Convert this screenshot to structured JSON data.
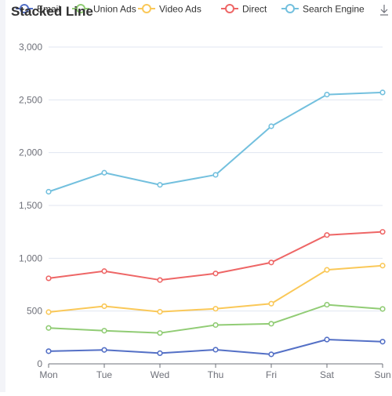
{
  "chart_data": {
    "type": "line",
    "title": "Stacked Line",
    "stacked": true,
    "categories": [
      "Mon",
      "Tue",
      "Wed",
      "Thu",
      "Fri",
      "Sat",
      "Sun"
    ],
    "y_ticks": [
      "0",
      "500",
      "1,000",
      "1,500",
      "2,000",
      "2,500",
      "3,000"
    ],
    "ylim": [
      0,
      3000
    ],
    "grid": true,
    "legend_position": "top",
    "series": [
      {
        "name": "Email",
        "color": "#5470c6",
        "values": [
          120,
          132,
          101,
          134,
          90,
          230,
          210
        ]
      },
      {
        "name": "Union Ads",
        "color": "#91cc75",
        "values": [
          220,
          182,
          191,
          234,
          290,
          330,
          310
        ]
      },
      {
        "name": "Video Ads",
        "color": "#fac858",
        "values": [
          150,
          232,
          201,
          154,
          190,
          330,
          410
        ]
      },
      {
        "name": "Direct",
        "color": "#ee6666",
        "values": [
          320,
          332,
          301,
          334,
          390,
          330,
          320
        ]
      },
      {
        "name": "Search Engine",
        "color": "#73c0de",
        "values": [
          820,
          932,
          901,
          934,
          1290,
          1330,
          1320
        ]
      }
    ]
  },
  "toolbox": {
    "save_icon": "download-icon"
  }
}
